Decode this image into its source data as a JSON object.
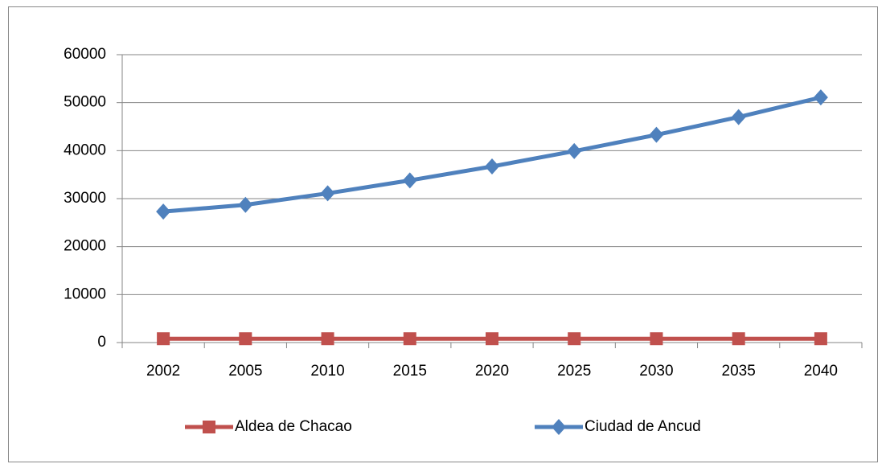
{
  "chart_data": {
    "type": "line",
    "categories": [
      "2002",
      "2005",
      "2010",
      "2015",
      "2020",
      "2025",
      "2030",
      "2035",
      "2040"
    ],
    "series": [
      {
        "name": "Aldea de Chacao",
        "color": "#c0504d",
        "marker": "square",
        "values": [
          800,
          800,
          800,
          800,
          800,
          800,
          800,
          800,
          800
        ]
      },
      {
        "name": "Ciudad de Ancud",
        "color": "#4f81bd",
        "marker": "diamond",
        "values": [
          27300,
          28700,
          31100,
          33800,
          36700,
          39900,
          43300,
          47000,
          51100
        ]
      }
    ],
    "ylim": [
      0,
      60000
    ],
    "yticks": [
      0,
      10000,
      20000,
      30000,
      40000,
      50000,
      60000
    ],
    "grid": true,
    "legend": "bottom"
  }
}
